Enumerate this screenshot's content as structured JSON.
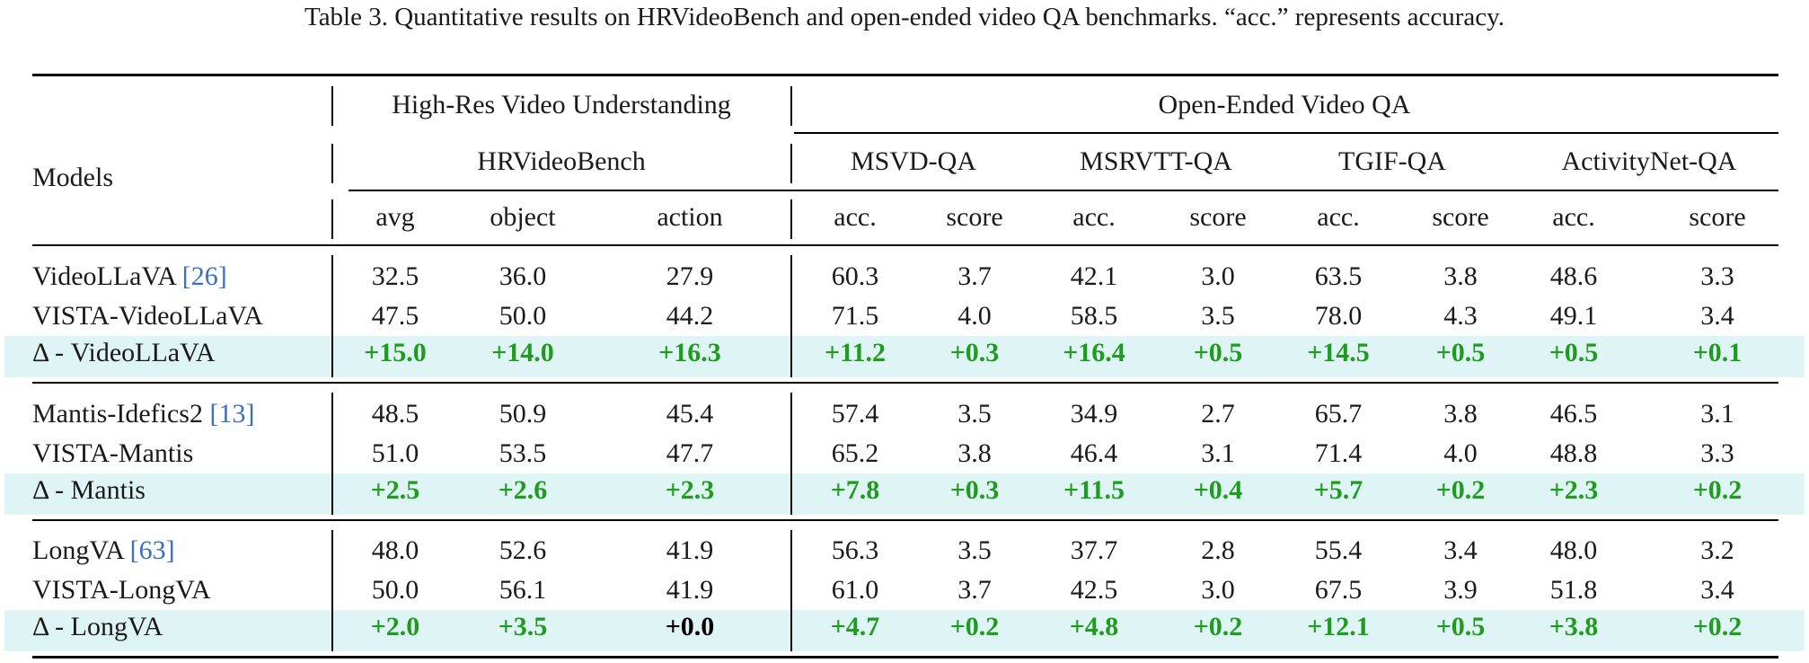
{
  "caption": "Table 3. Quantitative results on HRVideoBench and open-ended video QA benchmarks. “acc.” represents accuracy.",
  "header": {
    "models": "Models",
    "group_high_res": "High-Res Video Understanding",
    "group_open_ended": "Open-Ended Video QA",
    "bench_hr": "HRVideoBench",
    "bench_msvd": "MSVD-QA",
    "bench_msrvtt": "MSRVTT-QA",
    "bench_tgif": "TGIF-QA",
    "bench_anet": "ActivityNet-QA",
    "metrics": [
      "avg",
      "object",
      "action",
      "acc.",
      "score",
      "acc.",
      "score",
      "acc.",
      "score",
      "acc.",
      "score"
    ]
  },
  "groups": [
    {
      "rows": [
        {
          "name": "VideoLLaVA ",
          "cite": "[26]",
          "values": [
            "32.5",
            "36.0",
            "27.9",
            "60.3",
            "3.7",
            "42.1",
            "3.0",
            "63.5",
            "3.8",
            "48.6",
            "3.3"
          ]
        },
        {
          "name": "VISTA-VideoLLaVA",
          "cite": "",
          "values": [
            "47.5",
            "50.0",
            "44.2",
            "71.5",
            "4.0",
            "58.5",
            "3.5",
            "78.0",
            "4.3",
            "49.1",
            "3.4"
          ]
        }
      ],
      "delta": {
        "name": "Δ - VideoLLaVA",
        "values": [
          "+15.0",
          "+14.0",
          "+16.3",
          "+11.2",
          "+0.3",
          "+16.4",
          "+0.5",
          "+14.5",
          "+0.5",
          "+0.5",
          "+0.1"
        ]
      }
    },
    {
      "rows": [
        {
          "name": "Mantis-Idefics2 ",
          "cite": "[13]",
          "values": [
            "48.5",
            "50.9",
            "45.4",
            "57.4",
            "3.5",
            "34.9",
            "2.7",
            "65.7",
            "3.8",
            "46.5",
            "3.1"
          ]
        },
        {
          "name": "VISTA-Mantis",
          "cite": "",
          "values": [
            "51.0",
            "53.5",
            "47.7",
            "65.2",
            "3.8",
            "46.4",
            "3.1",
            "71.4",
            "4.0",
            "48.8",
            "3.3"
          ]
        }
      ],
      "delta": {
        "name": "Δ - Mantis",
        "values": [
          "+2.5",
          "+2.6",
          "+2.3",
          "+7.8",
          "+0.3",
          "+11.5",
          "+0.4",
          "+5.7",
          "+0.2",
          "+2.3",
          "+0.2"
        ]
      }
    },
    {
      "rows": [
        {
          "name": "LongVA ",
          "cite": "[63]",
          "values": [
            "48.0",
            "52.6",
            "41.9",
            "56.3",
            "3.5",
            "37.7",
            "2.8",
            "55.4",
            "3.4",
            "48.0",
            "3.2"
          ]
        },
        {
          "name": "VISTA-LongVA",
          "cite": "",
          "values": [
            "50.0",
            "56.1",
            "41.9",
            "61.0",
            "3.7",
            "42.5",
            "3.0",
            "67.5",
            "3.9",
            "51.8",
            "3.4"
          ]
        }
      ],
      "delta": {
        "name": "Δ - LongVA",
        "values": [
          "+2.0",
          "+3.5",
          "+0.0",
          "+4.7",
          "+0.2",
          "+4.8",
          "+0.2",
          "+12.1",
          "+0.5",
          "+3.8",
          "+0.2"
        ]
      }
    }
  ],
  "colors": {
    "positive": "#1f9b1f",
    "zero": "#000000",
    "highlight": "#dff5f5",
    "citation": "#3a6fc4"
  }
}
